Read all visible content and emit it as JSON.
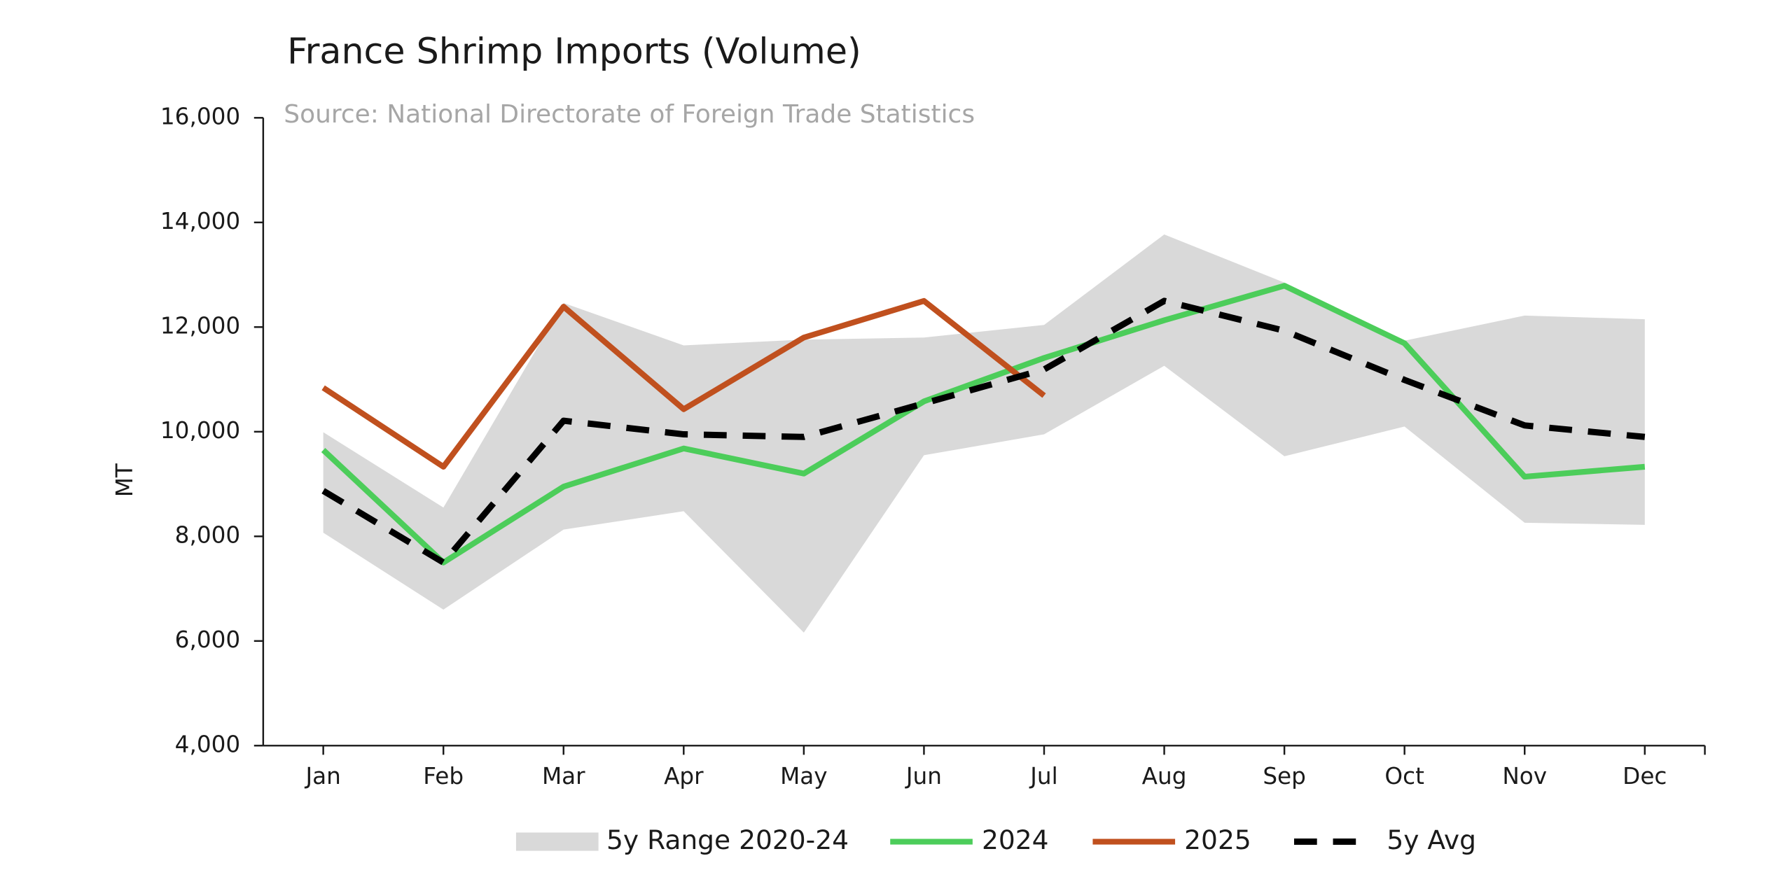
{
  "chart_data": {
    "type": "line",
    "title": "France Shrimp Imports (Volume)",
    "subtitle": "Source: National Directorate of Foreign Trade Statistics",
    "y_label": "MT",
    "categories": [
      "Jan",
      "Feb",
      "Mar",
      "Apr",
      "May",
      "Jun",
      "Jul",
      "Aug",
      "Sep",
      "Oct",
      "Nov",
      "Dec"
    ],
    "ylim": [
      4000,
      16000
    ],
    "yticks": [
      {
        "value": 4000,
        "label": "4,000"
      },
      {
        "value": 6000,
        "label": "6,000"
      },
      {
        "value": 8000,
        "label": "8,000"
      },
      {
        "value": 10000,
        "label": "10,000"
      },
      {
        "value": 12000,
        "label": "12,000"
      },
      {
        "value": 14000,
        "label": "14,000"
      },
      {
        "value": 16000,
        "label": "16,000"
      }
    ],
    "range": {
      "name": "5y Range 2020-24",
      "color": "#d9d9d9",
      "low": [
        8070,
        6600,
        8130,
        8480,
        6160,
        9550,
        9950,
        11260,
        9530,
        10100,
        8260,
        8220
      ],
      "high": [
        9990,
        8550,
        12460,
        11650,
        11760,
        11800,
        12040,
        13770,
        12850,
        11740,
        12220,
        12150
      ]
    },
    "series": [
      {
        "name": "2024",
        "color": "#4ccd5a",
        "dash": false,
        "values": [
          9650,
          7500,
          8950,
          9680,
          9200,
          10580,
          11410,
          12130,
          12790,
          11690,
          9140,
          9330
        ]
      },
      {
        "name": "2025",
        "color": "#c0501e",
        "dash": false,
        "values": [
          10840,
          9330,
          12390,
          10430,
          11800,
          12500,
          10690,
          null,
          null,
          null,
          null,
          null
        ]
      },
      {
        "name": "5y Avg",
        "color": "#000000",
        "dash": true,
        "values": [
          8870,
          7500,
          10210,
          9950,
          9900,
          10540,
          11190,
          12500,
          11930,
          10990,
          10120,
          9900
        ]
      }
    ]
  }
}
